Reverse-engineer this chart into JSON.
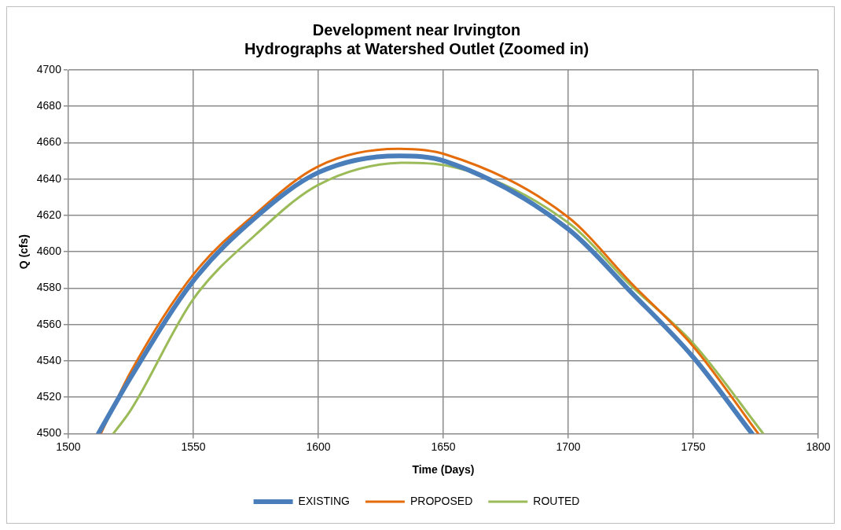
{
  "chart_data": {
    "type": "line",
    "title": [
      "Development near Irvington",
      "Hydrographs at Watershed Outlet (Zoomed in)"
    ],
    "xlabel": "Time (Days)",
    "ylabel": "Q (cfs)",
    "xlim": [
      1500,
      1800
    ],
    "xticks": [
      1500,
      1550,
      1600,
      1650,
      1700,
      1750,
      1800
    ],
    "ylim": [
      4500,
      4700
    ],
    "yticks": [
      4500,
      4520,
      4540,
      4560,
      4580,
      4600,
      4620,
      4640,
      4660,
      4680,
      4700
    ],
    "grid": true,
    "legend": "bottom",
    "marker": "none",
    "line_style": "solid",
    "series": [
      {
        "name": "EXISTING",
        "color": "#4a7ebb",
        "x": [
          1512,
          1525,
          1550,
          1575,
          1600,
          1632,
          1651,
          1700,
          1725,
          1750,
          1773.5
        ],
        "values": [
          4500,
          4531,
          4584,
          4619,
          4643.6,
          4652.8,
          4649.7,
          4612.5,
          4578,
          4542,
          4500
        ]
      },
      {
        "name": "PROPOSED",
        "color": "#e46c0a",
        "x": [
          1513,
          1525,
          1550,
          1575,
          1600,
          1632,
          1651,
          1700,
          1725,
          1750,
          1776
        ],
        "values": [
          4500,
          4534,
          4587.5,
          4621,
          4647,
          4656.6,
          4653.5,
          4619,
          4583,
          4548,
          4500
        ]
      },
      {
        "name": "ROUTED",
        "color": "#9bbb59",
        "x": [
          1518,
          1525,
          1550,
          1575,
          1600,
          1635,
          1651,
          1700,
          1725,
          1750,
          1778
        ],
        "values": [
          4500,
          4513,
          4574,
          4609.5,
          4636.8,
          4649,
          4647.5,
          4616,
          4581.5,
          4549.6,
          4500
        ]
      }
    ]
  }
}
